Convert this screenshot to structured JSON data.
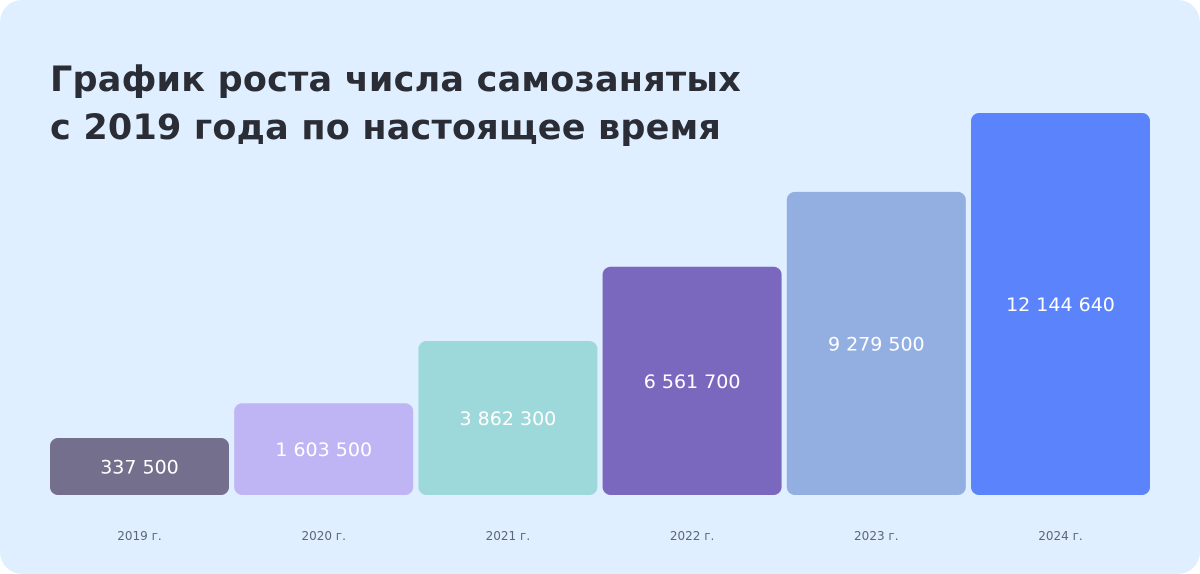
{
  "title_lines": [
    "График роста числа самозанятых",
    "с 2019 года по настоящее время"
  ],
  "chart_data": {
    "type": "bar",
    "title": "График роста числа самозанятых с 2019 года по настоящее время",
    "categories": [
      "2019 г.",
      "2020 г.",
      "2021 г.",
      "2022 г.",
      "2023 г.",
      "2024 г."
    ],
    "values": [
      337500,
      1603500,
      3862300,
      6561700,
      9279500,
      12144640
    ],
    "value_labels": [
      "337 500",
      "1 603 500",
      "3 862 300",
      "6 561 700",
      "9 279 500",
      "12 144 640"
    ],
    "colors": [
      "#736f8c",
      "#bfb5f5",
      "#9dd9da",
      "#7a68bf",
      "#93afe1",
      "#5b83fc"
    ],
    "grid": false,
    "legend": "none"
  }
}
